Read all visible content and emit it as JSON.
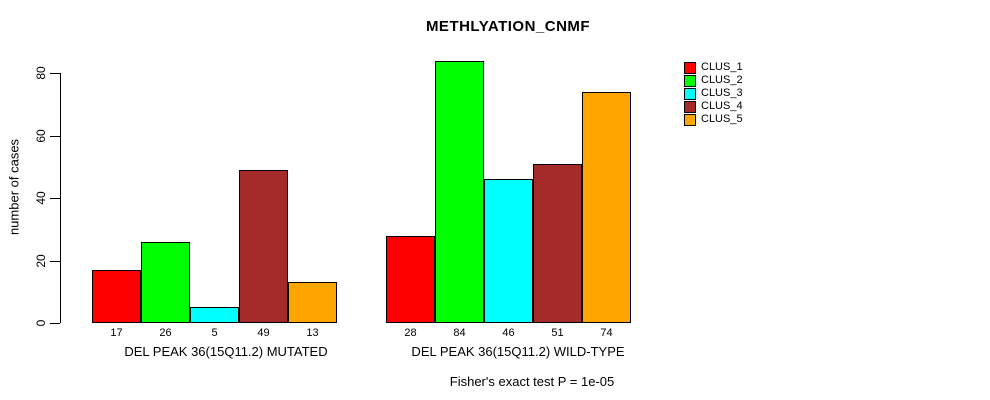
{
  "title": "METHLYATION_CNMF",
  "chart_data": {
    "type": "bar",
    "title": "METHLYATION_CNMF",
    "xlabel": "",
    "ylabel": "number of cases",
    "ylim": [
      0,
      80
    ],
    "yticks": [
      "0",
      "20",
      "40",
      "60",
      "80"
    ],
    "grid": false,
    "legend_position": "right-outside",
    "legend_entries": [
      "CLUS_1",
      "CLUS_2",
      "CLUS_3",
      "CLUS_4",
      "CLUS_5"
    ],
    "series": [
      {
        "name": "CLUS_1",
        "color": "#FF0000"
      },
      {
        "name": "CLUS_2",
        "color": "#00FF00"
      },
      {
        "name": "CLUS_3",
        "color": "#00FFFF"
      },
      {
        "name": "CLUS_4",
        "color": "#A52A2A"
      },
      {
        "name": "CLUS_5",
        "color": "#FFA500"
      }
    ],
    "groups": [
      {
        "label": "DEL PEAK 36(15Q11.2) MUTATED",
        "values": [
          17,
          26,
          5,
          49,
          13
        ]
      },
      {
        "label": "DEL PEAK 36(15Q11.2) WILD-TYPE",
        "values": [
          28,
          84,
          46,
          51,
          74
        ]
      }
    ],
    "annotation": "Fisher's exact test P = 1e-05"
  }
}
